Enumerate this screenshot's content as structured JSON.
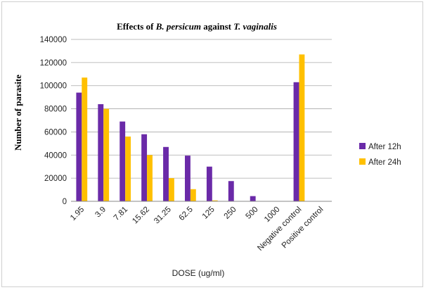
{
  "chart_data": {
    "type": "bar",
    "title_parts": [
      {
        "text": "Effects  of ",
        "italic": false
      },
      {
        "text": "B. persicum",
        "italic": true
      },
      {
        "text": " against ",
        "italic": false
      },
      {
        "text": "T. vaginalis",
        "italic": true
      }
    ],
    "xlabel": "DOSE (ug/ml)",
    "ylabel": "Number  of parasite",
    "ylim": [
      0,
      140000
    ],
    "y_ticks": [
      0,
      20000,
      40000,
      60000,
      80000,
      100000,
      120000,
      140000
    ],
    "y_tick_labels": [
      "0",
      "20000",
      "40000",
      "60000",
      "80000",
      "100000",
      "120000",
      "140000"
    ],
    "grid": true,
    "legend_position": "right",
    "categories": [
      "1.95",
      "3.9",
      "7.81",
      "15.62",
      "31.25",
      "62.5",
      "125",
      "250",
      "500",
      "1000",
      "Negative control",
      "Positive control"
    ],
    "series": [
      {
        "name": "After 12h",
        "color": "#6a2aa8",
        "values": [
          94000,
          84000,
          69000,
          58000,
          47000,
          39500,
          30000,
          17500,
          4500,
          0,
          103000,
          0
        ]
      },
      {
        "name": "After 24h",
        "color": "#ffc000",
        "values": [
          107000,
          80000,
          56000,
          40000,
          20000,
          10500,
          800,
          0,
          0,
          0,
          127000,
          0
        ]
      }
    ]
  }
}
